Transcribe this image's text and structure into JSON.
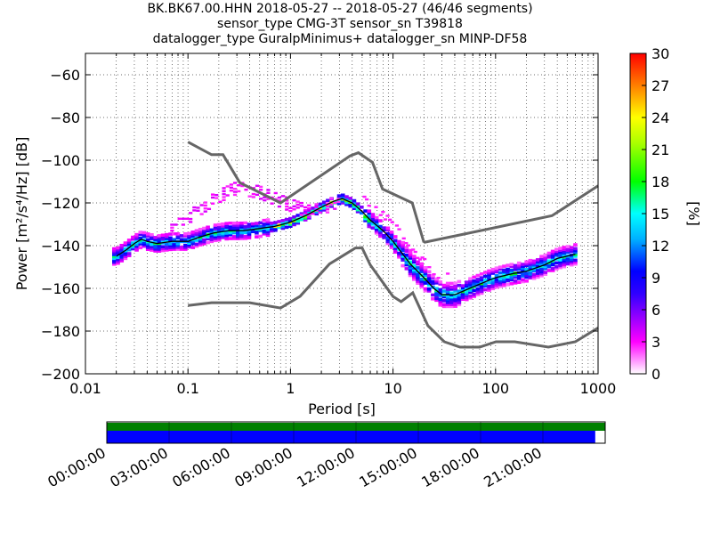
{
  "title_lines": [
    "BK.BK67.00.HHN   2018-05-27 -- 2018-05-27  (46/46 segments)",
    "sensor_type CMG-3T sensor_sn T39818",
    "datalogger_type GuralpMinimus+ datalogger_sn MINP-DF58"
  ],
  "chart_data": [
    {
      "type": "heatmap",
      "xlabel": "Period [s]",
      "ylabel": "Power [m²/s⁴/Hz] [dB]",
      "xscale": "log",
      "xlim": [
        0.01,
        1000
      ],
      "ylim": [
        -200,
        -50
      ],
      "x_ticks": [
        {
          "value": 0.01,
          "label": "0.01"
        },
        {
          "value": 0.1,
          "label": "0.1"
        },
        {
          "value": 1,
          "label": "1"
        },
        {
          "value": 10,
          "label": "10"
        },
        {
          "value": 100,
          "label": "100"
        },
        {
          "value": 1000,
          "label": "1000"
        }
      ],
      "y_ticks": [
        {
          "value": -60,
          "label": "−60"
        },
        {
          "value": -80,
          "label": "−80"
        },
        {
          "value": -100,
          "label": "−100"
        },
        {
          "value": -120,
          "label": "−120"
        },
        {
          "value": -140,
          "label": "−140"
        },
        {
          "value": -160,
          "label": "−160"
        },
        {
          "value": -180,
          "label": "−180"
        },
        {
          "value": -200,
          "label": "−200"
        }
      ],
      "grid": true,
      "colorbar": {
        "label": "[%]",
        "range": [
          0,
          30
        ],
        "ticks": [
          "0",
          "3",
          "6",
          "9",
          "12",
          "15",
          "18",
          "21",
          "24",
          "27",
          "30"
        ],
        "colors": [
          "#ffffff",
          "#ff00ff",
          "#0000ff",
          "#00ffff",
          "#00ff00",
          "#ffff00",
          "#ff7f00",
          "#ff0000"
        ]
      },
      "mode_curve": {
        "period": [
          0.02,
          0.025,
          0.03,
          0.035,
          0.04,
          0.05,
          0.07,
          0.1,
          0.13,
          0.18,
          0.25,
          0.35,
          0.5,
          0.7,
          1.0,
          1.4,
          2.0,
          2.7,
          3.2,
          4.0,
          5.0,
          6.0,
          8.0,
          10.0,
          12.0,
          15.0,
          20.0,
          25.0,
          30.0,
          40.0,
          50.0,
          70.0,
          100.0,
          150.0,
          200.0,
          300.0,
          400.0,
          600.0
        ],
        "db": [
          -145,
          -142,
          -139,
          -137,
          -138,
          -139,
          -138,
          -138,
          -136,
          -134,
          -133,
          -133,
          -132,
          -131,
          -129,
          -126,
          -122,
          -119,
          -118,
          -120,
          -124,
          -128,
          -133,
          -138,
          -143,
          -149,
          -155,
          -160,
          -163,
          -163,
          -161,
          -158,
          -155,
          -153,
          -152,
          -149,
          -146,
          -144
        ]
      },
      "extra_mode_curve": {
        "period": [
          0.07,
          0.1,
          0.15,
          0.2,
          0.3,
          0.5,
          0.7,
          1.0,
          1.5,
          2.0,
          2.7,
          3.2
        ],
        "db": [
          -133,
          -127,
          -121,
          -117,
          -113,
          -115,
          -118,
          -121,
          -124,
          -123,
          -120,
          -119
        ]
      },
      "noise_models": [
        {
          "period": [
            0.1,
            0.17,
            0.22,
            0.32,
            0.8,
            3.8,
            4.6,
            6.3,
            7.9,
            15.4,
            20.0
          ],
          "db": [
            -91.5,
            -97.4,
            -97.4,
            -110.5,
            -120,
            -98,
            -96.5,
            -101,
            -113.5,
            -120,
            -138.5
          ]
        },
        {
          "period": [
            20.0,
            354.8,
            1000.0
          ],
          "db": [
            -138.5,
            -126,
            -112
          ]
        },
        {
          "period": [
            0.1,
            0.17,
            0.4,
            0.8,
            1.24,
            2.4,
            4.3,
            5.0,
            6.0,
            10.0,
            12.0,
            15.6,
            21.9,
            31.6,
            45.0,
            70.0,
            101.0,
            154.0,
            328.0,
            600.0,
            1000.0
          ],
          "db": [
            -168,
            -166.7,
            -166.7,
            -169.2,
            -163.7,
            -148.6,
            -141.1,
            -141.1,
            -149,
            -163.8,
            -166.2,
            -162.1,
            -177.5,
            -185,
            -187.5,
            -187.5,
            -185,
            -185,
            -187.5,
            -185,
            -178.5
          ]
        }
      ],
      "scatter_bands": [
        {
          "period_range": [
            0.02,
            0.7
          ],
          "db_center": -137,
          "db_spread": 4,
          "max_pct": 16
        },
        {
          "period_range": [
            0.7,
            10
          ],
          "db_center": -128,
          "db_spread": 3,
          "max_pct": 20
        },
        {
          "period_range": [
            10,
            40
          ],
          "db_center": -158,
          "db_spread": 6,
          "max_pct": 18
        },
        {
          "period_range": [
            40,
            700
          ],
          "db_center": -152,
          "db_spread": 5,
          "max_pct": 16
        }
      ]
    },
    {
      "type": "timeline",
      "ticks": [
        "00:00:00",
        "03:00:00",
        "06:00:00",
        "09:00:00",
        "12:00:00",
        "15:00:00",
        "18:00:00",
        "21:00:00"
      ],
      "coverage_fraction": 0.98,
      "bar_colors": {
        "top": "#008000",
        "bottom": "#0000ff"
      }
    }
  ]
}
